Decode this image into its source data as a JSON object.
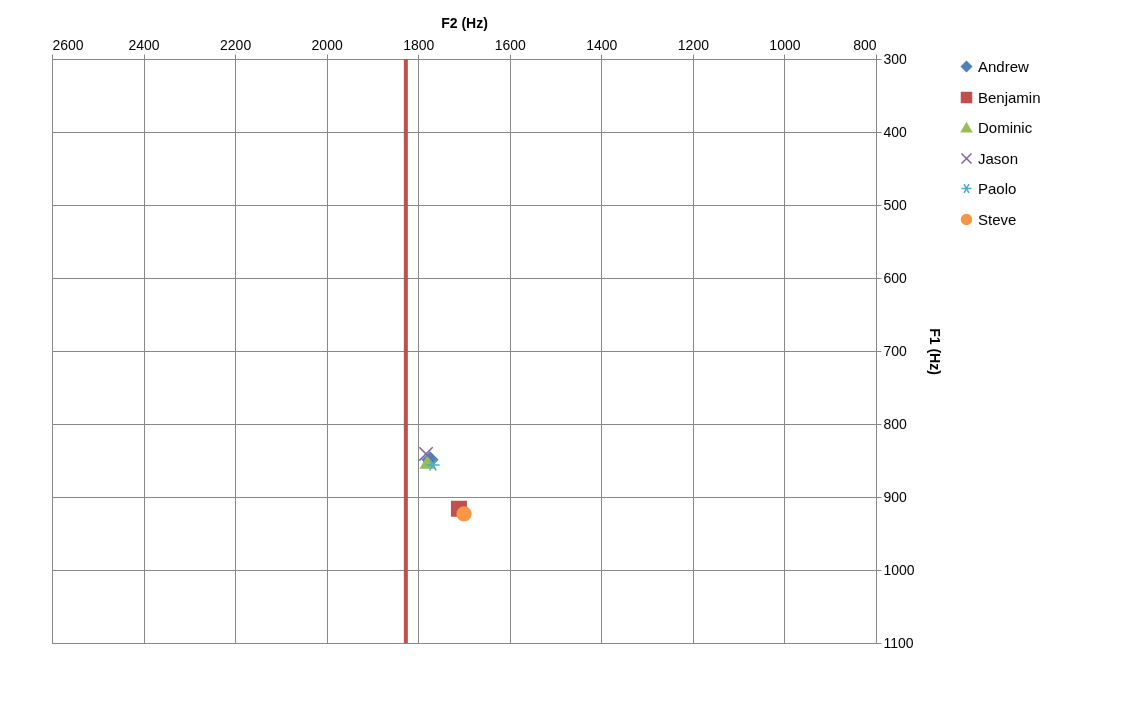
{
  "chart_data": {
    "type": "scatter",
    "xlabel": "F2 (Hz)",
    "ylabel": "F1 (Hz)",
    "xlim": [
      2600,
      800
    ],
    "xticks": [
      2600,
      2400,
      2200,
      2000,
      1800,
      1600,
      1400,
      1200,
      1000,
      800
    ],
    "ylim": [
      1100,
      300
    ],
    "yticks": [
      300,
      400,
      500,
      600,
      700,
      800,
      900,
      1000,
      1100
    ],
    "grid": true,
    "legend": "right",
    "series": [
      {
        "name": "Andrew",
        "color": "#4f81bd",
        "marker": "diamond",
        "x": [
          1774
        ],
        "values": [
          849
        ]
      },
      {
        "name": "Benjamin",
        "color": "#c0504d",
        "marker": "square",
        "x": [
          1711
        ],
        "values": [
          916
        ]
      },
      {
        "name": "Dominic",
        "color": "#9bbb59",
        "marker": "triangle",
        "x": [
          1779
        ],
        "values": [
          852
        ]
      },
      {
        "name": "Jason",
        "color": "#8064a2",
        "marker": "cross",
        "x": [
          1783
        ],
        "values": [
          841
        ]
      },
      {
        "name": "Paolo",
        "color": "#4bacc6",
        "marker": "cross",
        "x": [
          1768
        ],
        "values": [
          856
        ]
      },
      {
        "name": "Steve",
        "color": "#f79646",
        "marker": "circle",
        "x": [
          1700
        ],
        "values": [
          923
        ]
      }
    ],
    "ref_lines": [
      {
        "axis": "x",
        "value": 1827,
        "color": "#c0504d"
      }
    ]
  }
}
